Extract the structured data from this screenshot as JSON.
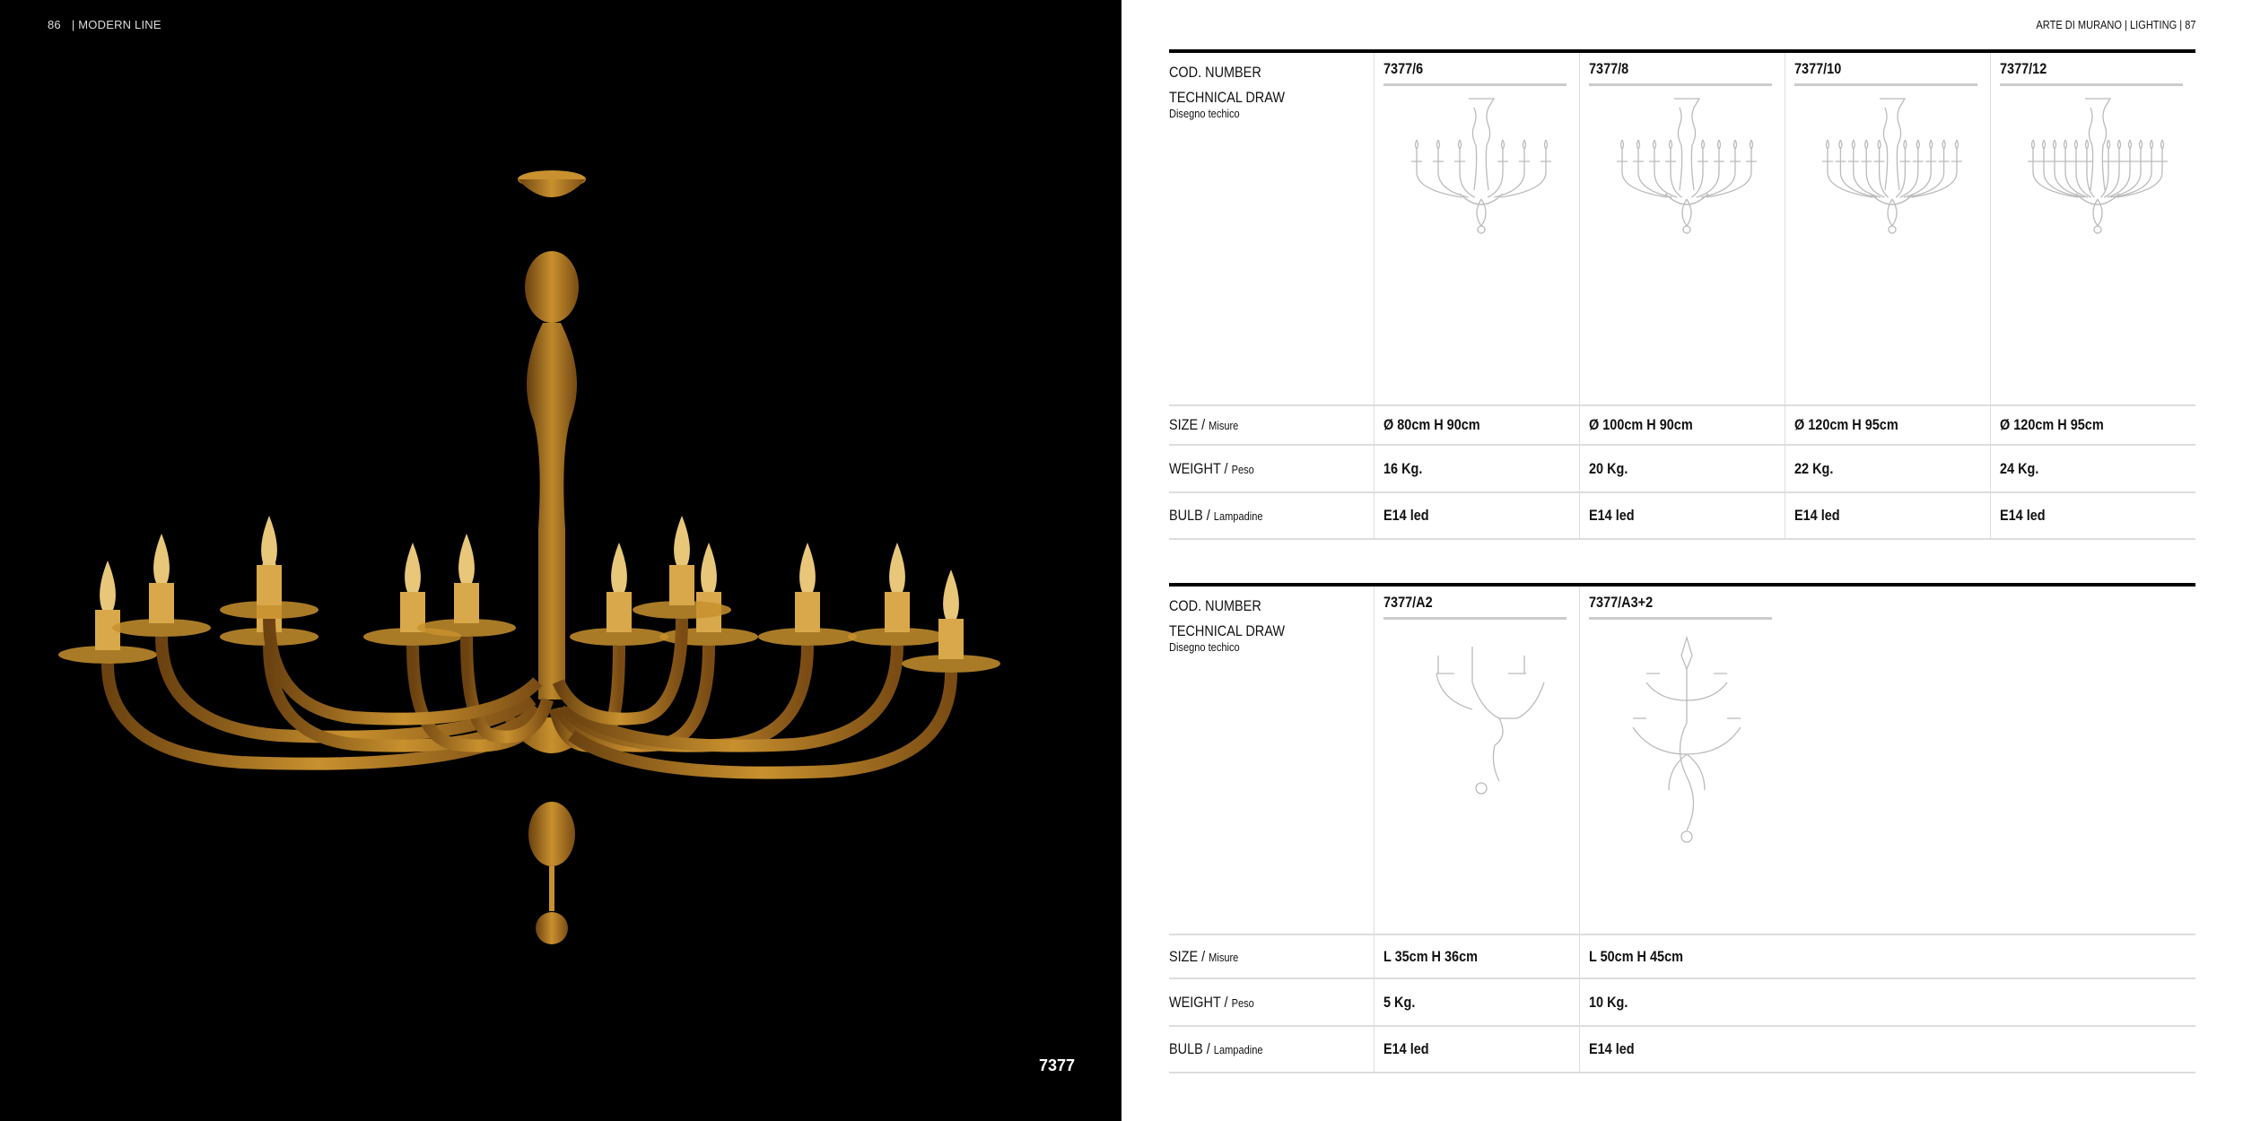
{
  "left_page": {
    "page_number": "86",
    "section": "| MODERN LINE",
    "product_code": "7377",
    "photo_color": "#c8902e"
  },
  "right_page": {
    "header": "ARTE DI MURANO | LIGHTING |  87"
  },
  "labels": {
    "cod": "COD. NUMBER",
    "tech": "TECHNICAL DRAW",
    "tech_sub": "Disegno techico",
    "size": "SIZE / ",
    "size_sub": "Misure",
    "weight": "WEIGHT / ",
    "weight_sub": "Peso",
    "bulb": "BULB / ",
    "bulb_sub": "Lampadine"
  },
  "tables": [
    {
      "products": [
        {
          "code": "7377/6",
          "size": "Ø 80cm H 90cm",
          "weight": "16 Kg.",
          "bulb": "E14 led",
          "arms": 6
        },
        {
          "code": "7377/8",
          "size": "Ø 100cm H 90cm",
          "weight": "20 Kg.",
          "bulb": "E14 led",
          "arms": 8
        },
        {
          "code": "7377/10",
          "size": "Ø 120cm H 95cm",
          "weight": "22 Kg.",
          "bulb": "E14 led",
          "arms": 10
        },
        {
          "code": "7377/12",
          "size": "Ø 120cm H 95cm",
          "weight": "24 Kg.",
          "bulb": "E14 led",
          "arms": 12
        }
      ]
    },
    {
      "products": [
        {
          "code": "7377/A2",
          "size": "L 35cm H 36cm",
          "weight": "5 Kg.",
          "bulb": "E14 led",
          "arms": 2,
          "type": "wall"
        },
        {
          "code": "7377/A3+2",
          "size": "L 50cm H 45cm",
          "weight": "10 Kg.",
          "bulb": "E14 led",
          "arms": 5,
          "type": "wall2"
        }
      ]
    }
  ]
}
